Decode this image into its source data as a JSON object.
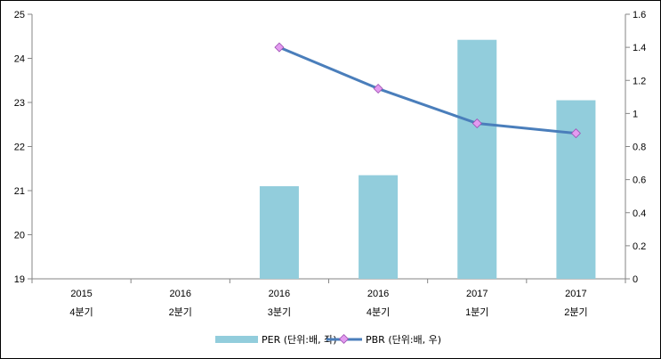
{
  "chart_data": {
    "type": "bar",
    "categories": [
      [
        "2015",
        "4분기"
      ],
      [
        "2016",
        "2분기"
      ],
      [
        "2016",
        "3분기"
      ],
      [
        "2016",
        "4분기"
      ],
      [
        "2017",
        "1분기"
      ],
      [
        "2017",
        "2분기"
      ]
    ],
    "series": [
      {
        "name": "PER (단위:배, 좌)",
        "type": "bar",
        "axis": "left",
        "color": "#92cddc",
        "values": [
          null,
          null,
          21.1,
          21.35,
          24.42,
          23.05
        ]
      },
      {
        "name": "PBR (단위:배, 우)",
        "type": "line",
        "axis": "right",
        "color": "#4a7ebb",
        "marker_color": "#e39bf0",
        "values": [
          null,
          null,
          1.4,
          1.15,
          0.94,
          0.88
        ]
      }
    ],
    "y_left": {
      "min": 19,
      "max": 25,
      "ticks": [
        "19",
        "20",
        "21",
        "22",
        "23",
        "24",
        "25"
      ]
    },
    "y_right": {
      "min": 0,
      "max": 1.6,
      "ticks": [
        "0",
        "0.2",
        "0.4",
        "0.6",
        "0.8",
        "1",
        "1.2",
        "1.4",
        "1.6"
      ]
    },
    "grid": false,
    "legend_position": "bottom"
  }
}
